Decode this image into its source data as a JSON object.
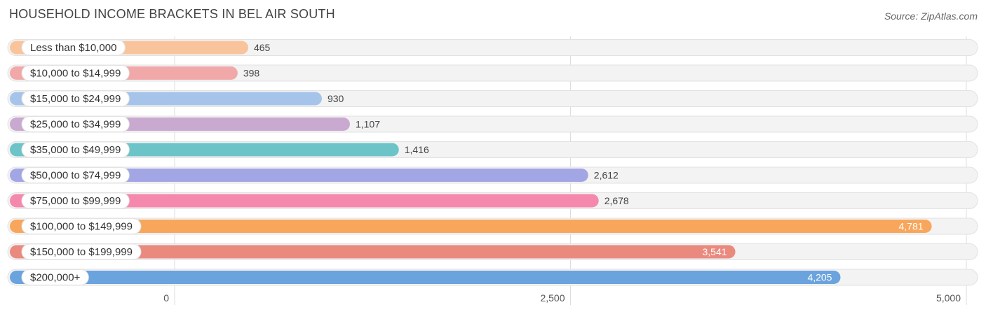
{
  "header": {
    "title": "HOUSEHOLD INCOME BRACKETS IN BEL AIR SOUTH",
    "source": "Source: ZipAtlas.com"
  },
  "chart_data": {
    "type": "bar",
    "orientation": "horizontal",
    "categories": [
      "Less than $10,000",
      "$10,000 to $14,999",
      "$15,000 to $24,999",
      "$25,000 to $34,999",
      "$35,000 to $49,999",
      "$50,000 to $74,999",
      "$75,000 to $99,999",
      "$100,000 to $149,999",
      "$150,000 to $199,999",
      "$200,000+"
    ],
    "values": [
      465,
      398,
      930,
      1107,
      1416,
      2612,
      2678,
      4781,
      3541,
      4205
    ],
    "value_labels": [
      "465",
      "398",
      "930",
      "1,107",
      "1,416",
      "2,612",
      "2,678",
      "4,781",
      "3,541",
      "4,205"
    ],
    "colors": [
      "#f9c49b",
      "#f1a8a8",
      "#a6c4ea",
      "#c9a9d0",
      "#6cc4c8",
      "#a3a6e4",
      "#f589ad",
      "#f8a65c",
      "#ea8a7f",
      "#6aa3de"
    ],
    "xlim": [
      0,
      5000
    ],
    "xticks": [
      0,
      2500,
      5000
    ],
    "xtick_labels": [
      "0",
      "2,500",
      "5,000"
    ],
    "grid": true
  }
}
